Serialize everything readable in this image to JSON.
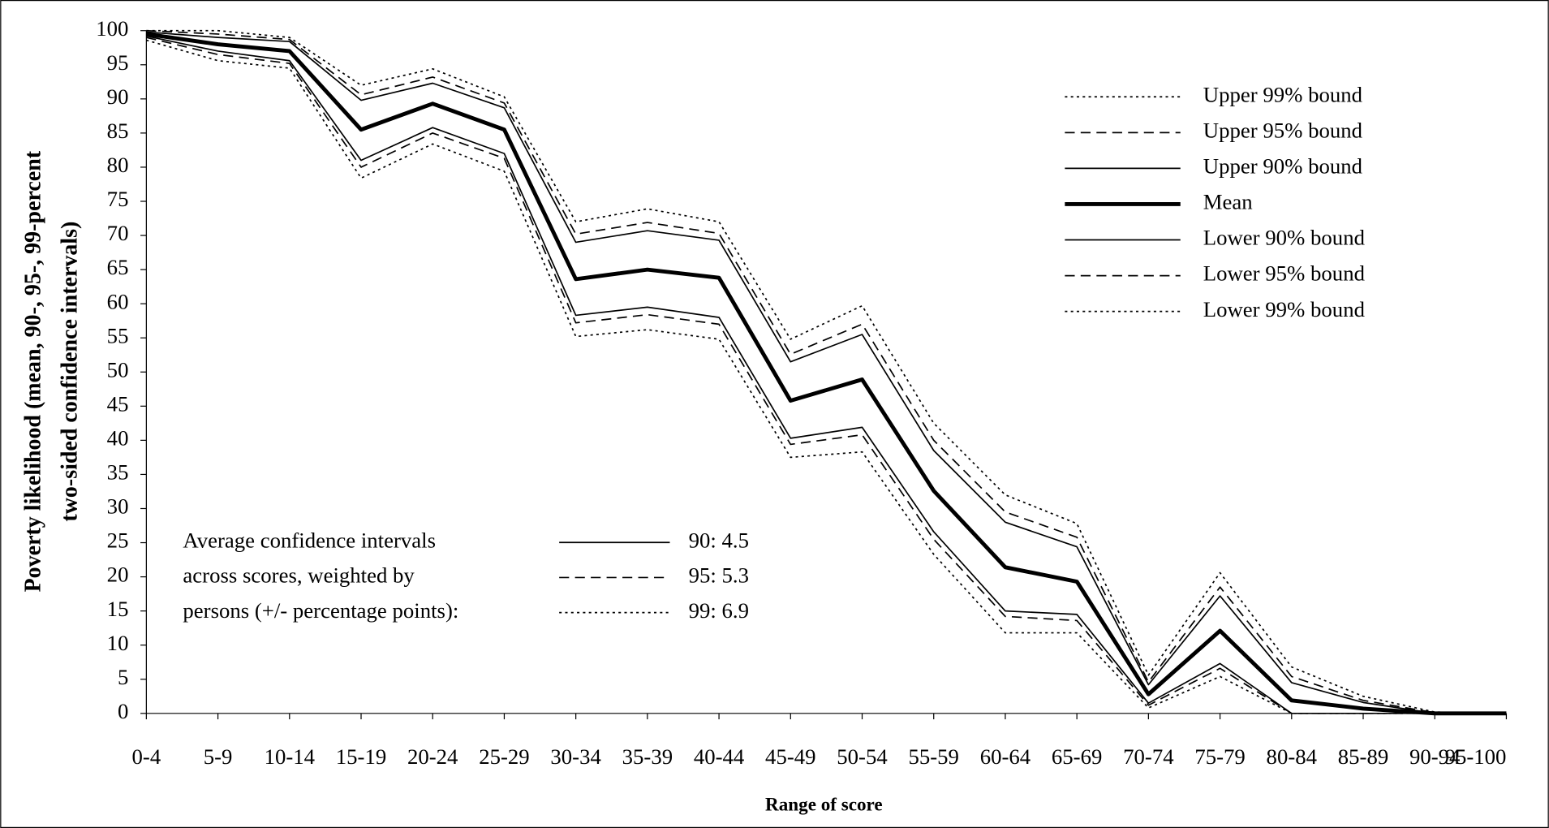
{
  "chart_data": {
    "type": "line",
    "y_label_lines": [
      "Poverty likelihood (mean, 90-, 95-, 99-percent",
      "two-sided confidence intervals)"
    ],
    "x_label": "Range of score",
    "categories": [
      "0-4",
      "5-9",
      "10-14",
      "15-19",
      "20-24",
      "25-29",
      "30-34",
      "35-39",
      "40-44",
      "45-49",
      "50-54",
      "55-59",
      "60-64",
      "65-69",
      "70-74",
      "75-79",
      "80-84",
      "85-89",
      "90-94",
      "95-100"
    ],
    "ylim": [
      0,
      100
    ],
    "yticks": [
      0,
      5,
      10,
      15,
      20,
      25,
      30,
      35,
      40,
      45,
      50,
      55,
      60,
      65,
      70,
      75,
      80,
      85,
      90,
      95,
      100
    ],
    "legend_position": "upper-right",
    "series": [
      {
        "name": "Upper 99% bound",
        "color": "#000000",
        "dash": "dotted",
        "width": 1.4,
        "values": [
          100,
          100,
          99,
          92,
          94.4,
          90.3,
          72,
          73.9,
          72,
          54.8,
          59.7,
          42.5,
          32,
          27.8,
          5.6,
          20.6,
          6.8,
          2.5,
          0.2,
          0
        ]
      },
      {
        "name": "Upper 95% bound",
        "color": "#000000",
        "dash": "dashed",
        "width": 1.4,
        "values": [
          100,
          99.5,
          98.7,
          90.6,
          93.2,
          89.4,
          70.2,
          71.9,
          70.3,
          52.6,
          57,
          40,
          29.5,
          25.8,
          4.6,
          18.5,
          5.4,
          1.9,
          0.1,
          0
        ]
      },
      {
        "name": "Upper 90% bound",
        "color": "#000000",
        "dash": "solid",
        "width": 1.4,
        "values": [
          99.8,
          99,
          98.4,
          89.8,
          92.3,
          88.7,
          69,
          70.7,
          69.3,
          51.5,
          55.5,
          38.5,
          28,
          24.4,
          4.2,
          17.2,
          4.5,
          1.6,
          0,
          0
        ]
      },
      {
        "name": "Mean",
        "color": "#000000",
        "dash": "solid",
        "width": 4,
        "values": [
          99.5,
          98,
          97,
          85.5,
          89.3,
          85.5,
          63.6,
          65,
          63.8,
          45.8,
          48.9,
          32.6,
          21.4,
          19.3,
          2.8,
          12.1,
          1.9,
          0.7,
          0,
          0
        ]
      },
      {
        "name": "Lower 90% bound",
        "color": "#000000",
        "dash": "solid",
        "width": 1.4,
        "values": [
          99.2,
          97,
          95.6,
          81,
          85.8,
          82,
          58.3,
          59.5,
          58,
          40.3,
          41.9,
          26.6,
          15,
          14.5,
          1.5,
          7.3,
          0,
          0,
          0,
          0
        ]
      },
      {
        "name": "Lower 95% bound",
        "color": "#000000",
        "dash": "dashed",
        "width": 1.4,
        "values": [
          99,
          96.5,
          95.2,
          80,
          85,
          81.3,
          57.2,
          58.4,
          57,
          39.4,
          40.8,
          25.5,
          14.2,
          13.6,
          1.2,
          6.6,
          0,
          0,
          0,
          0
        ]
      },
      {
        "name": "Lower 99% bound",
        "color": "#000000",
        "dash": "dotted",
        "width": 1.4,
        "values": [
          98.6,
          95.6,
          94.5,
          78.4,
          83.4,
          79.4,
          55.2,
          56.2,
          54.8,
          37.5,
          38.3,
          23.3,
          11.8,
          11.8,
          0.8,
          5.4,
          0,
          0,
          0,
          0
        ]
      }
    ],
    "ci_summary": {
      "lines": [
        "Average confidence intervals",
        "across scores, weighted by",
        "persons (+/- percentage points):"
      ],
      "entries": [
        {
          "label": "90: 4.5",
          "dash": "solid"
        },
        {
          "label": "95: 5.3",
          "dash": "dashed"
        },
        {
          "label": "99: 6.9",
          "dash": "dotted"
        }
      ]
    }
  }
}
